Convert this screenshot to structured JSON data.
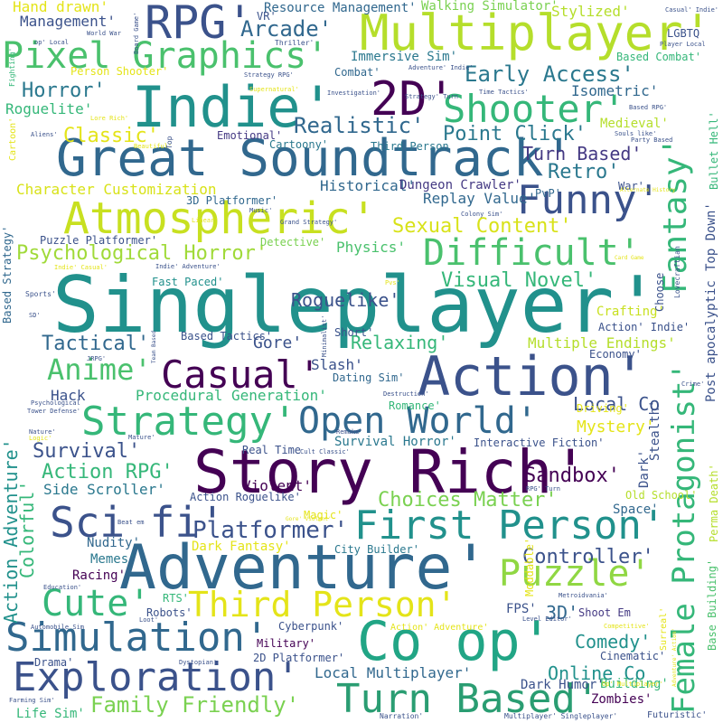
{
  "palette": {
    "dark_purple": "#440154",
    "indigo": "#3b528b",
    "blue": "#31688e",
    "teal": "#21918c",
    "green": "#35b779",
    "lime": "#90d743",
    "yellow": "#e4e419"
  },
  "words": [
    {
      "text": "Singleplayer'",
      "color": "#21918c"
    },
    {
      "text": "Adventure'",
      "color": "#31688e"
    },
    {
      "text": "Story Rich'",
      "color": "#440154"
    },
    {
      "text": "Great Soundtrack'",
      "color": "#31688e"
    },
    {
      "text": "Action'",
      "color": "#3b528b"
    },
    {
      "text": "Indie'",
      "color": "#21918c"
    },
    {
      "text": "Multiplayer'",
      "color": "#b5de2b"
    },
    {
      "text": "Atmospheric'",
      "color": "#c8e020"
    },
    {
      "text": "Female Protagonist'",
      "color": "#35b779"
    },
    {
      "text": "Co op'",
      "color": "#21a585"
    },
    {
      "text": "Exploration'",
      "color": "#3b528b"
    },
    {
      "text": "Simulation'",
      "color": "#31688e"
    },
    {
      "text": "Strategy'",
      "color": "#35b779"
    },
    {
      "text": "Open World'",
      "color": "#31688e"
    },
    {
      "text": "First Person'",
      "color": "#21918c"
    },
    {
      "text": "Turn Based'",
      "color": "#2a9d72"
    },
    {
      "text": "Casual'",
      "color": "#440154"
    },
    {
      "text": "Pixel Graphics'",
      "color": "#4ac16d"
    },
    {
      "text": "2D'",
      "color": "#440154"
    },
    {
      "text": "RPG'",
      "color": "#3b528b"
    },
    {
      "text": "Fantasy'",
      "color": "#35b779"
    },
    {
      "text": "Difficult'",
      "color": "#4ac16d"
    },
    {
      "text": "Funny'",
      "color": "#3b528b"
    },
    {
      "text": "Shooter'",
      "color": "#35b779"
    },
    {
      "text": "Sci fi'",
      "color": "#3b528b"
    },
    {
      "text": "Third Person'",
      "color": "#e4e419"
    },
    {
      "text": "Puzzle'",
      "color": "#90d743"
    },
    {
      "text": "Cute'",
      "color": "#35b779"
    },
    {
      "text": "Anime'",
      "color": "#4ac16d"
    },
    {
      "text": "Family Friendly'",
      "color": "#7ad151"
    },
    {
      "text": "Psychological Horror'",
      "color": "#a0da39"
    },
    {
      "text": "Sexual Content'",
      "color": "#d8e219"
    },
    {
      "text": "Early Access'",
      "color": "#2a788e"
    },
    {
      "text": "Platformer'",
      "color": "#3b528b"
    },
    {
      "text": "Choices Matter'",
      "color": "#7ad151"
    },
    {
      "text": "Visual Novel'",
      "color": "#35b779"
    },
    {
      "text": "Horror'",
      "color": "#2a788e"
    },
    {
      "text": "Realistic'",
      "color": "#31688e"
    },
    {
      "text": "Point Click'",
      "color": "#2a788e"
    },
    {
      "text": "Classic'",
      "color": "#e4e419"
    },
    {
      "text": "Turn Based'",
      "color": "#443983"
    },
    {
      "text": "Retro'",
      "color": "#2a788e"
    },
    {
      "text": "Arcade'",
      "color": "#31688e"
    },
    {
      "text": "Roguelike'",
      "color": "#3b528b"
    },
    {
      "text": "Tactical'",
      "color": "#31688e"
    },
    {
      "text": "Relaxing'",
      "color": "#35b779"
    },
    {
      "text": "Gore'",
      "color": "#3b528b"
    },
    {
      "text": "Survival'",
      "color": "#3b528b"
    },
    {
      "text": "Action RPG'",
      "color": "#35b779"
    },
    {
      "text": "Sandbox'",
      "color": "#440154"
    },
    {
      "text": "Local Co",
      "color": "#3b528b"
    },
    {
      "text": "Controller'",
      "color": "#3b528b"
    },
    {
      "text": "Comedy'",
      "color": "#21918c"
    },
    {
      "text": "Online Co",
      "color": "#21918c"
    },
    {
      "text": "Action Adventure'",
      "color": "#21918c"
    },
    {
      "text": "Colorful'",
      "color": "#35b779"
    },
    {
      "text": "Mystery'",
      "color": "#e4e419"
    },
    {
      "text": "Multiple Endings'",
      "color": "#b5de2b"
    },
    {
      "text": "Crafting'",
      "color": "#c8e020"
    },
    {
      "text": "Side Scroller'",
      "color": "#2a788e"
    },
    {
      "text": "Procedural Generation'",
      "color": "#35b779"
    },
    {
      "text": "Character Customization",
      "color": "#d8e219"
    },
    {
      "text": "Hand drawn'",
      "color": "#e4e419"
    },
    {
      "text": "Management'",
      "color": "#3b528b"
    },
    {
      "text": "Roguelite'",
      "color": "#35b779"
    },
    {
      "text": "Stylized'",
      "color": "#b5de2b"
    },
    {
      "text": "Resource Management'",
      "color": "#31688e"
    },
    {
      "text": "Walking Simulator'",
      "color": "#7ad151"
    },
    {
      "text": "Immersive Sim'",
      "color": "#2a788e"
    },
    {
      "text": "Isometric'",
      "color": "#31688e"
    },
    {
      "text": "Medieval'",
      "color": "#b5de2b"
    },
    {
      "text": "Historical'",
      "color": "#31688e"
    },
    {
      "text": "Dungeon Crawler'",
      "color": "#443983"
    },
    {
      "text": "Replay Value'",
      "color": "#31688e"
    },
    {
      "text": "Physics'",
      "color": "#4ac16d"
    },
    {
      "text": "Fast Paced'",
      "color": "#21918c"
    },
    {
      "text": "Dating Sim'",
      "color": "#31688e"
    },
    {
      "text": "Slash'",
      "color": "#3b528b"
    },
    {
      "text": "Hack",
      "color": "#3b528b"
    },
    {
      "text": "Survival Horror'",
      "color": "#2a788e"
    },
    {
      "text": "Interactive Fiction'",
      "color": "#3b528b"
    },
    {
      "text": "Dark Fantasy'",
      "color": "#e4e419"
    },
    {
      "text": "City Builder'",
      "color": "#2a788e"
    },
    {
      "text": "Local Multiplayer'",
      "color": "#31688e"
    },
    {
      "text": "Dark Humor'",
      "color": "#3b528b"
    },
    {
      "text": "Zombies'",
      "color": "#440154"
    },
    {
      "text": "Building'",
      "color": "#35b779"
    },
    {
      "text": "Post apocalyptic",
      "color": "#3b528b"
    },
    {
      "text": "Top Down'",
      "color": "#3b528b"
    },
    {
      "text": "Bullet Hell'",
      "color": "#35b779"
    },
    {
      "text": "Base Building'",
      "color": "#4ac16d"
    },
    {
      "text": "Violent'",
      "color": "#440154"
    },
    {
      "text": "Nudity'",
      "color": "#31688e"
    },
    {
      "text": "Memes'",
      "color": "#2a788e"
    },
    {
      "text": "Racing'",
      "color": "#440154"
    },
    {
      "text": "Space'",
      "color": "#31688e"
    },
    {
      "text": "Old School'",
      "color": "#b5de2b"
    },
    {
      "text": "3D'",
      "color": "#31688e"
    },
    {
      "text": "FPS'",
      "color": "#3b528b"
    },
    {
      "text": "Shoot Em",
      "color": "#443983"
    },
    {
      "text": "Cyberpunk'",
      "color": "#3b528b"
    },
    {
      "text": "Military'",
      "color": "#440154"
    },
    {
      "text": "2D Platformer'",
      "color": "#3b528b"
    },
    {
      "text": "Robots'",
      "color": "#3b528b"
    },
    {
      "text": "Life Sim'",
      "color": "#35b779"
    },
    {
      "text": "Drama'",
      "color": "#3b528b"
    },
    {
      "text": "Emotional'",
      "color": "#443983"
    },
    {
      "text": "Cartoony'",
      "color": "#2a788e"
    },
    {
      "text": "Third Person",
      "color": "#2a788e"
    },
    {
      "text": "PvP'",
      "color": "#31688e"
    },
    {
      "text": "War'",
      "color": "#3b528b"
    },
    {
      "text": "3D Platformer'",
      "color": "#31688e"
    },
    {
      "text": "Puzzle Platformer'",
      "color": "#3b528b"
    },
    {
      "text": "Detective'",
      "color": "#7ad151"
    },
    {
      "text": "Combat'",
      "color": "#31688e"
    },
    {
      "text": "Based Combat'",
      "color": "#35b779"
    },
    {
      "text": "Person Shooter'",
      "color": "#e4e419"
    },
    {
      "text": "LGBTQ",
      "color": "#3b528b"
    },
    {
      "text": "Real Time",
      "color": "#3b528b"
    },
    {
      "text": "Based Tactics'",
      "color": "#3b528b"
    },
    {
      "text": "Magic'",
      "color": "#e4e419"
    },
    {
      "text": "Action Roguelike'",
      "color": "#3b528b"
    },
    {
      "text": "Moddable'",
      "color": "#e4e419"
    },
    {
      "text": "Economy'",
      "color": "#3b528b"
    },
    {
      "text": "Action' Indie'",
      "color": "#3b528b"
    },
    {
      "text": "Choose",
      "color": "#3b528b"
    },
    {
      "text": "Lovecraftian",
      "color": "#3b528b"
    },
    {
      "text": "Driving'",
      "color": "#e4e419"
    },
    {
      "text": "Short'",
      "color": "#3b528b"
    },
    {
      "text": "Romance'",
      "color": "#35b779"
    },
    {
      "text": "Dark'",
      "color": "#3b528b"
    },
    {
      "text": "Stealth'",
      "color": "#3b528b"
    },
    {
      "text": "Perma Death'",
      "color": "#b5de2b"
    },
    {
      "text": "Surreal'",
      "color": "#e4e419"
    },
    {
      "text": "Futuristic'",
      "color": "#3b528b"
    },
    {
      "text": "Cinematic'",
      "color": "#3b528b"
    },
    {
      "text": "Action' Adventure'",
      "color": "#e4e419"
    },
    {
      "text": "Multiplayer' Singleplayer'",
      "color": "#3b528b"
    },
    {
      "text": "Narration'",
      "color": "#3b528b"
    },
    {
      "text": "VR'",
      "color": "#3b528b"
    },
    {
      "text": "Based Strategy'",
      "color": "#31688e"
    },
    {
      "text": "Cartoon'",
      "color": "#e4e419"
    },
    {
      "text": "Fighting'",
      "color": "#35b779"
    },
    {
      "text": "Sports'",
      "color": "#3b528b"
    },
    {
      "text": "Minimalist'",
      "color": "#3b528b"
    },
    {
      "text": "Board Game'",
      "color": "#3b528b"
    },
    {
      "text": "Thriller'",
      "color": "#3b528b"
    },
    {
      "text": "Strategy RPG'",
      "color": "#3b528b"
    },
    {
      "text": "Investigation'",
      "color": "#3b528b"
    },
    {
      "text": "Time Tactics'",
      "color": "#3b528b"
    },
    {
      "text": "Based RPG'",
      "color": "#3b528b"
    },
    {
      "text": "Casual' Indie'",
      "color": "#3b528b"
    },
    {
      "text": "Player Local",
      "color": "#3b528b"
    },
    {
      "text": "Lore Rich'",
      "color": "#e4e419"
    },
    {
      "text": "Supernatural'",
      "color": "#e4e419"
    },
    {
      "text": "Adventure' Indie'",
      "color": "#3b528b"
    },
    {
      "text": "Strategy' Turn",
      "color": "#3b528b"
    },
    {
      "text": "Souls like'",
      "color": "#3b528b"
    },
    {
      "text": "Party Based",
      "color": "#3b528b"
    },
    {
      "text": "Aliens'",
      "color": "#3b528b"
    },
    {
      "text": "Beautiful'",
      "color": "#e4e419"
    },
    {
      "text": "Top",
      "color": "#3b528b"
    },
    {
      "text": "Linear'",
      "color": "#e4e419"
    },
    {
      "text": "Music'",
      "color": "#3b528b"
    },
    {
      "text": "Grand Strategy'",
      "color": "#3b528b"
    },
    {
      "text": "Colony Sim'",
      "color": "#3b528b"
    },
    {
      "text": "Alternate History",
      "color": "#e4e419"
    },
    {
      "text": "World War",
      "color": "#3b528b"
    },
    {
      "text": "op' Local",
      "color": "#3b528b"
    },
    {
      "text": "Card Game",
      "color": "#e4e419"
    },
    {
      "text": "Indie' Casual'",
      "color": "#e4e419"
    },
    {
      "text": "Indie' Adventure'",
      "color": "#3b528b"
    },
    {
      "text": "Remake'",
      "color": "#3b528b"
    },
    {
      "text": "Destruction'",
      "color": "#3b528b"
    },
    {
      "text": "Crime'",
      "color": "#3b528b"
    },
    {
      "text": "Psychological",
      "color": "#3b528b"
    },
    {
      "text": "Tower Defense'",
      "color": "#3b528b"
    },
    {
      "text": "Nature'",
      "color": "#3b528b"
    },
    {
      "text": "Logic'",
      "color": "#e4e419"
    },
    {
      "text": "Mature'",
      "color": "#3b528b"
    },
    {
      "text": "JRPG'",
      "color": "#3b528b"
    },
    {
      "text": "Team Based",
      "color": "#3b528b"
    },
    {
      "text": "Cult Classic'",
      "color": "#3b528b"
    },
    {
      "text": "Beat em",
      "color": "#3b528b"
    },
    {
      "text": "RPG' Turn",
      "color": "#3b528b"
    },
    {
      "text": "Metroidvania'",
      "color": "#3b528b"
    },
    {
      "text": "Education'",
      "color": "#3b528b"
    },
    {
      "text": "Automobile Sim",
      "color": "#3b528b"
    },
    {
      "text": "Loot'",
      "color": "#3b528b"
    },
    {
      "text": "Level Editor'",
      "color": "#3b528b"
    },
    {
      "text": "Competitive'",
      "color": "#e4e419"
    },
    {
      "text": "Dystopian'",
      "color": "#3b528b"
    },
    {
      "text": "Farming Sim'",
      "color": "#3b528b"
    },
    {
      "text": "Op' Multiplayer'",
      "color": "#e4e419"
    },
    {
      "text": "Adventure' Action'",
      "color": "#e4e419"
    },
    {
      "text": "RTS'",
      "color": "#35b779"
    },
    {
      "text": "SD'",
      "color": "#3b528b"
    },
    {
      "text": "Pvs'",
      "color": "#e4e419"
    },
    {
      "text": "Gore' Violent'",
      "color": "#e4e419"
    }
  ]
}
